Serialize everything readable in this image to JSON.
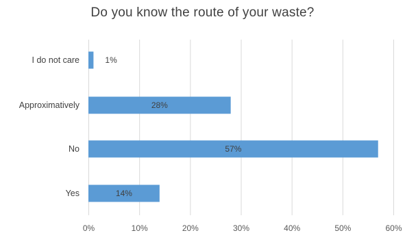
{
  "chart_data": {
    "type": "bar",
    "orientation": "horizontal",
    "title": "Do you know the route of your waste?",
    "categories": [
      "I do not care",
      "Approximatively",
      "No",
      "Yes"
    ],
    "values": [
      1,
      28,
      57,
      14
    ],
    "data_labels": [
      "1%",
      "28%",
      "57%",
      "14%"
    ],
    "xlim": [
      0,
      60
    ],
    "x_ticks": [
      0,
      10,
      20,
      30,
      40,
      50,
      60
    ],
    "x_tick_labels": [
      "0%",
      "10%",
      "20%",
      "30%",
      "40%",
      "50%",
      "60%"
    ],
    "grid": "vertical",
    "legend": "none",
    "bar_color": "#5b9bd5"
  }
}
